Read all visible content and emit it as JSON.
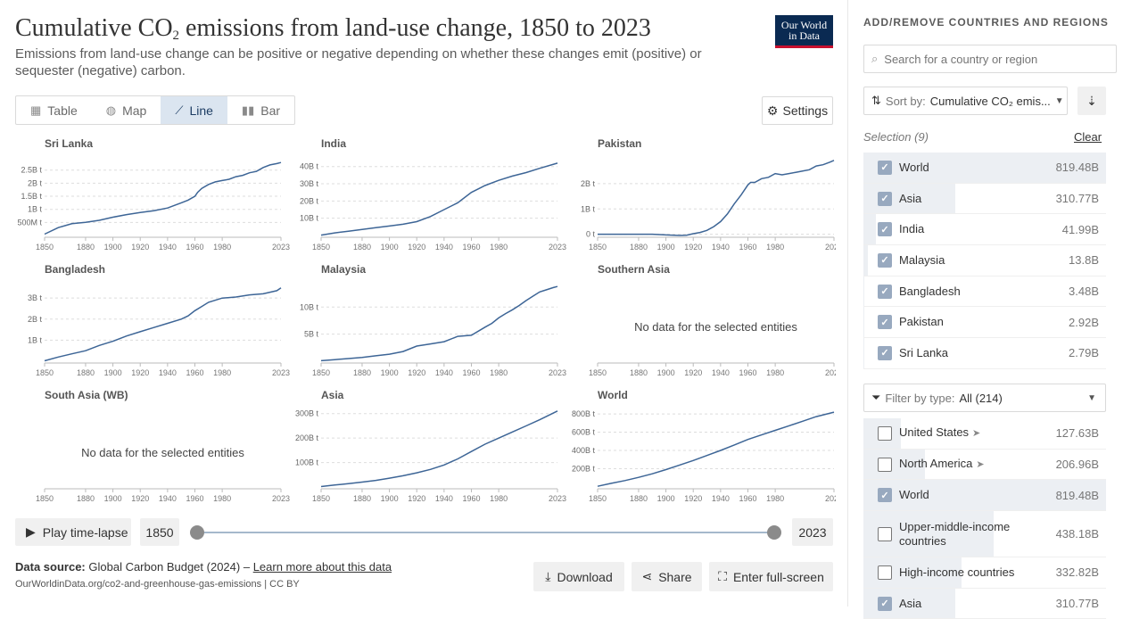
{
  "header": {
    "title_main": "Cumulative CO",
    "title_sub": "2",
    "title_rest": " emissions from land-use change, 1850 to 2023",
    "subtitle": "Emissions from land-use change can be positive or negative depending on whether these changes emit (positive) or sequester (negative) carbon.",
    "logo_line1": "Our World",
    "logo_line2": "in Data"
  },
  "tabs": [
    {
      "label": "Table",
      "icon": "table-icon"
    },
    {
      "label": "Map",
      "icon": "globe-icon"
    },
    {
      "label": "Line",
      "icon": "line-chart-icon",
      "active": true
    },
    {
      "label": "Bar",
      "icon": "bar-chart-icon"
    }
  ],
  "settings_label": "Settings",
  "timeline": {
    "play_label": "Play time-lapse",
    "start_year": "1850",
    "end_year": "2023"
  },
  "footer": {
    "source_label": "Data source:",
    "source_text": "Global Carbon Budget (2024) –",
    "learn_more": "Learn more about this data",
    "url": "OurWorldinData.org/co2-and-greenhouse-gas-emissions | CC BY",
    "download": "Download",
    "share": "Share",
    "fullscreen": "Enter full-screen"
  },
  "sidebar": {
    "heading": "ADD/REMOVE COUNTRIES AND REGIONS",
    "search_placeholder": "Search for a country or region",
    "sort_label": "Sort by:",
    "sort_value": "Cumulative CO₂ emis...",
    "selection_label": "Selection (9)",
    "clear_label": "Clear",
    "selected": [
      {
        "name": "World",
        "value": "819.48B",
        "share": 1.0
      },
      {
        "name": "Asia",
        "value": "310.77B",
        "share": 0.38
      },
      {
        "name": "India",
        "value": "41.99B",
        "share": 0.05
      },
      {
        "name": "Malaysia",
        "value": "13.8B",
        "share": 0.017
      },
      {
        "name": "Bangladesh",
        "value": "3.48B",
        "share": 0.004
      },
      {
        "name": "Pakistan",
        "value": "2.92B",
        "share": 0.004
      },
      {
        "name": "Sri Lanka",
        "value": "2.79B",
        "share": 0.003
      }
    ],
    "filter_label": "Filter by type:",
    "filter_value": "All (214)",
    "all": [
      {
        "name": "United States",
        "value": "127.63B",
        "share": 0.156,
        "checked": false,
        "arrow": true
      },
      {
        "name": "North America",
        "value": "206.96B",
        "share": 0.253,
        "checked": false,
        "arrow": true
      },
      {
        "name": "World",
        "value": "819.48B",
        "share": 1.0,
        "checked": true
      },
      {
        "name": "Upper-middle-income countries",
        "value": "438.18B",
        "share": 0.535,
        "checked": false,
        "tall": true
      },
      {
        "name": "High-income countries",
        "value": "332.82B",
        "share": 0.406,
        "checked": false
      },
      {
        "name": "Asia",
        "value": "310.77B",
        "share": 0.38,
        "checked": true
      }
    ]
  },
  "chart_data": {
    "type": "line",
    "unit": "t",
    "line_color": "#3d6596",
    "x_ticks": [
      1850,
      1880,
      1900,
      1920,
      1940,
      1960,
      1980,
      2023
    ],
    "panels": [
      {
        "name": "Sri Lanka",
        "ymax": 2900000000.0,
        "yticks": [
          [
            500000000.0,
            "500M t"
          ],
          [
            1000000000.0,
            "1B t"
          ],
          [
            1500000000.0,
            "1.5B t"
          ],
          [
            2000000000.0,
            "2B t"
          ],
          [
            2500000000.0,
            "2.5B t"
          ]
        ],
        "x": [
          1850,
          1860,
          1870,
          1880,
          1890,
          1900,
          1910,
          1920,
          1930,
          1940,
          1945,
          1950,
          1955,
          1960,
          1962,
          1965,
          1970,
          1975,
          1980,
          1985,
          1990,
          1995,
          2000,
          2005,
          2010,
          2015,
          2020,
          2023
        ],
        "y": [
          0.05,
          0.3,
          0.45,
          0.5,
          0.58,
          0.7,
          0.8,
          0.88,
          0.95,
          1.05,
          1.15,
          1.25,
          1.35,
          1.5,
          1.65,
          1.8,
          1.95,
          2.05,
          2.1,
          2.15,
          2.25,
          2.3,
          2.4,
          2.45,
          2.6,
          2.7,
          2.75,
          2.79
        ]
      },
      {
        "name": "India",
        "ymax": 44000000000.0,
        "yticks": [
          [
            10000000000.0,
            "10B t"
          ],
          [
            20000000000.0,
            "20B t"
          ],
          [
            30000000000.0,
            "30B t"
          ],
          [
            40000000000.0,
            "40B t"
          ]
        ],
        "x": [
          1850,
          1860,
          1870,
          1880,
          1890,
          1900,
          1910,
          1920,
          1930,
          1940,
          1950,
          1960,
          1965,
          1970,
          1980,
          1990,
          2000,
          2010,
          2023
        ],
        "y": [
          0.2,
          1.5,
          2.5,
          3.5,
          4.5,
          5.5,
          6.5,
          8,
          11,
          15,
          19,
          25,
          27,
          29,
          32,
          34.5,
          36.5,
          39,
          41.99
        ]
      },
      {
        "name": "Pakistan",
        "ymax": 2950000000.0,
        "yticks": [
          [
            0,
            "0 t"
          ],
          [
            1000000000.0,
            "1B t"
          ],
          [
            2000000000.0,
            "2B t"
          ]
        ],
        "x": [
          1850,
          1860,
          1870,
          1880,
          1890,
          1900,
          1910,
          1915,
          1920,
          1925,
          1930,
          1935,
          1940,
          1945,
          1950,
          1955,
          1960,
          1962,
          1965,
          1970,
          1975,
          1980,
          1985,
          1990,
          1995,
          2000,
          2005,
          2010,
          2015,
          2020,
          2023
        ],
        "y": [
          0,
          0,
          0,
          0,
          0,
          -0.03,
          -0.05,
          -0.04,
          0.02,
          0.07,
          0.15,
          0.3,
          0.5,
          0.8,
          1.2,
          1.55,
          1.95,
          2.05,
          2.05,
          2.2,
          2.25,
          2.4,
          2.35,
          2.4,
          2.45,
          2.5,
          2.55,
          2.7,
          2.75,
          2.85,
          2.92
        ]
      },
      {
        "name": "Bangladesh",
        "ymax": 3600000000.0,
        "yticks": [
          [
            1000000000.0,
            "1B t"
          ],
          [
            2000000000.0,
            "2B t"
          ],
          [
            3000000000.0,
            "3B t"
          ]
        ],
        "x": [
          1850,
          1860,
          1870,
          1880,
          1890,
          1900,
          1910,
          1920,
          1930,
          1940,
          1950,
          1955,
          1960,
          1965,
          1970,
          1980,
          1990,
          2000,
          2010,
          2020,
          2023
        ],
        "y": [
          0.02,
          0.2,
          0.35,
          0.5,
          0.75,
          0.95,
          1.2,
          1.4,
          1.6,
          1.8,
          2.0,
          2.15,
          2.4,
          2.6,
          2.8,
          3.0,
          3.05,
          3.15,
          3.2,
          3.35,
          3.48
        ]
      },
      {
        "name": "Malaysia",
        "ymax": 14000000000.0,
        "yticks": [
          [
            5000000000.0,
            "5B t"
          ],
          [
            10000000000.0,
            "10B t"
          ]
        ],
        "x": [
          1850,
          1860,
          1870,
          1880,
          1890,
          1900,
          1910,
          1920,
          1930,
          1940,
          1950,
          1960,
          1970,
          1975,
          1980,
          1985,
          1990,
          1995,
          2000,
          2005,
          2010,
          2015,
          2020,
          2023
        ],
        "y": [
          0.1,
          0.3,
          0.5,
          0.7,
          1.0,
          1.3,
          1.8,
          2.8,
          3.2,
          3.6,
          4.6,
          4.8,
          6.3,
          7.0,
          8.0,
          8.8,
          9.5,
          10.3,
          11.2,
          12.0,
          12.8,
          13.2,
          13.6,
          13.8
        ]
      },
      {
        "name": "Southern Asia",
        "nodata": true
      },
      {
        "name": "South Asia (WB)",
        "nodata": true
      },
      {
        "name": "Asia",
        "ymax": 310000000000.0,
        "yticks": [
          [
            100000000000.0,
            "100B t"
          ],
          [
            200000000000.0,
            "200B t"
          ],
          [
            300000000000.0,
            "300B t"
          ]
        ],
        "x": [
          1850,
          1860,
          1870,
          1880,
          1890,
          1900,
          1910,
          1920,
          1930,
          1940,
          1950,
          1960,
          1970,
          1980,
          1990,
          2000,
          2010,
          2023
        ],
        "y": [
          2,
          8,
          14,
          20,
          27,
          36,
          46,
          58,
          72,
          90,
          115,
          145,
          175,
          200,
          225,
          250,
          275,
          310.77
        ]
      },
      {
        "name": "World",
        "ymax": 830000000000.0,
        "yticks": [
          [
            200000000000.0,
            "200B t"
          ],
          [
            400000000000.0,
            "400B t"
          ],
          [
            600000000000.0,
            "600B t"
          ],
          [
            800000000000.0,
            "800B t"
          ]
        ],
        "x": [
          1850,
          1860,
          1870,
          1880,
          1890,
          1900,
          1910,
          1920,
          1930,
          1940,
          1950,
          1960,
          1970,
          1980,
          1990,
          2000,
          2010,
          2023
        ],
        "y": [
          8,
          40,
          70,
          105,
          145,
          190,
          240,
          290,
          345,
          400,
          460,
          520,
          570,
          620,
          670,
          720,
          770,
          819.48
        ]
      }
    ],
    "no_data_text": "No data for the selected entities"
  }
}
